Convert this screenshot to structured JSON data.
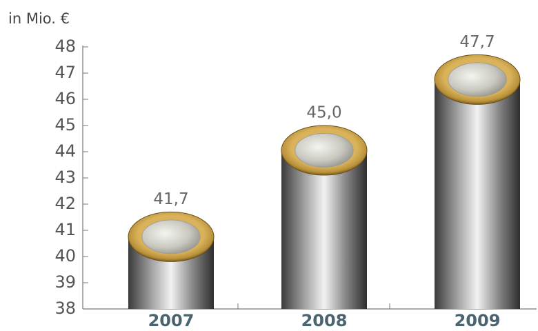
{
  "chart_data": {
    "type": "bar",
    "y_label": "in Mio. €",
    "categories": [
      "2007",
      "2008",
      "2009"
    ],
    "values": [
      41.7,
      45.0,
      47.7
    ],
    "value_labels": [
      "41,7",
      "45,0",
      "47,7"
    ],
    "ylim": [
      38,
      48
    ],
    "yticks": [
      38,
      39,
      40,
      41,
      42,
      43,
      44,
      45,
      46,
      47,
      48
    ]
  }
}
